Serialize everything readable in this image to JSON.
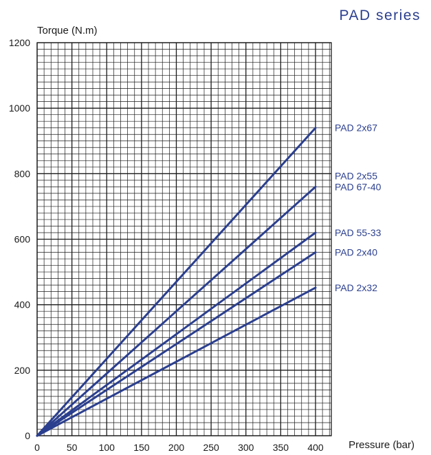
{
  "chart_data": {
    "type": "line",
    "title": "PAD series",
    "xlabel": "Pressure (bar)",
    "ylabel": "Torque (N.m)",
    "xlim": [
      0,
      400
    ],
    "ylim": [
      0,
      1200
    ],
    "x_ticks": [
      "0",
      "50",
      "100",
      "150",
      "200",
      "250",
      "300",
      "350",
      "400"
    ],
    "y_ticks": [
      "0",
      "200",
      "400",
      "600",
      "800",
      "1000",
      "1200"
    ],
    "grid": true,
    "series": [
      {
        "name": "PAD 2x67",
        "x": [
          0,
          400
        ],
        "y": [
          0,
          940
        ]
      },
      {
        "name": "PAD 2x55\nPAD 67-40",
        "x": [
          0,
          400
        ],
        "y": [
          0,
          760
        ]
      },
      {
        "name": "PAD 55-33",
        "x": [
          0,
          400
        ],
        "y": [
          0,
          620
        ]
      },
      {
        "name": "PAD 2x40",
        "x": [
          0,
          400
        ],
        "y": [
          0,
          560
        ]
      },
      {
        "name": "PAD 2x32",
        "x": [
          0,
          400
        ],
        "y": [
          0,
          452
        ]
      }
    ],
    "line_color": "#2b3f8f",
    "grid_color": "#1a1a1a"
  }
}
